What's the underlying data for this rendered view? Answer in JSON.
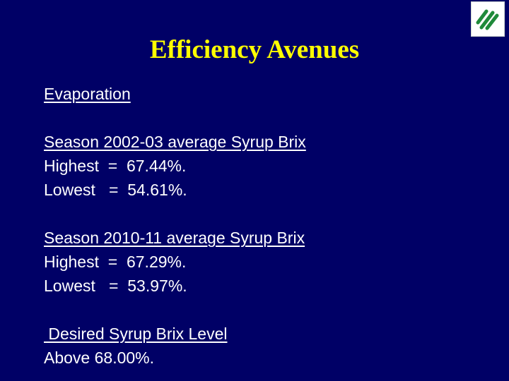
{
  "slide": {
    "title": "Efficiency Avenues",
    "heading": "Evaporation",
    "season1": {
      "label": "Season 2002-03 average Syrup Brix",
      "highest": "Highest  =  67.44%.",
      "lowest": "Lowest   =  54.61%."
    },
    "season2": {
      "label": "Season 2010-11 average Syrup Brix",
      "highest": "Highest  =  67.29%.",
      "lowest": "Lowest   =  53.97%."
    },
    "desired": {
      "label": " Desired Syrup Brix Level",
      "value": "Above 68.00%."
    }
  },
  "logo": {
    "icon": "company-logo-icon",
    "colors": {
      "stripe": "#1f8a3a",
      "background": "#ffffff"
    }
  },
  "colors": {
    "background": "#000066",
    "title": "#ffff00",
    "text": "#ffffff"
  }
}
